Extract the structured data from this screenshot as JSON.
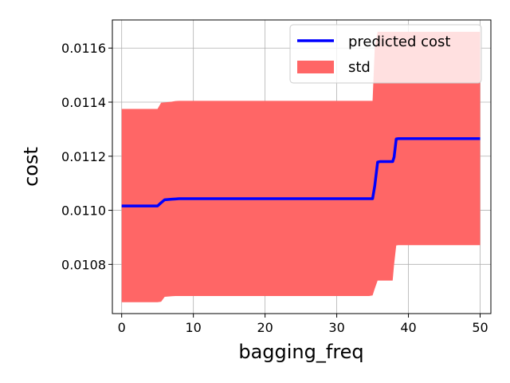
{
  "chart_data": {
    "type": "line",
    "xlabel": "bagging_freq",
    "ylabel": "cost",
    "xlim": [
      -1.3,
      51.5
    ],
    "ylim": [
      0.010618,
      0.011704
    ],
    "xticks": [
      0,
      10,
      20,
      30,
      40,
      50
    ],
    "xtick_labels": [
      "0",
      "10",
      "20",
      "30",
      "40",
      "50"
    ],
    "yticks": [
      0.0108,
      0.011,
      0.0112,
      0.0114,
      0.0116
    ],
    "ytick_labels": [
      "0.0108",
      "0.0110",
      "0.0112",
      "0.0114",
      "0.0116"
    ],
    "grid": true,
    "legend_position": "top-right",
    "series": [
      {
        "name": "predicted cost",
        "color": "#0000ff",
        "x": [
          0,
          5,
          5.5,
          6,
          7,
          7.5,
          8,
          10,
          20,
          30,
          34.5,
          35,
          35.3,
          35.7,
          36,
          37,
          37.8,
          38,
          38.3,
          38.6,
          40,
          50
        ],
        "y": [
          0.011016,
          0.011016,
          0.011028,
          0.011039,
          0.011041,
          0.011042,
          0.011043,
          0.011043,
          0.011043,
          0.011043,
          0.011043,
          0.011043,
          0.01109,
          0.011178,
          0.01118,
          0.01118,
          0.01118,
          0.011197,
          0.011264,
          0.011265,
          0.011265,
          0.011265
        ]
      },
      {
        "name": "std",
        "type": "area",
        "color": "#ff6666",
        "x": [
          0,
          5,
          5.5,
          6,
          7,
          7.5,
          8,
          10,
          20,
          30,
          34.5,
          35,
          35.3,
          35.7,
          36,
          37,
          37.8,
          38,
          38.3,
          38.6,
          40,
          50
        ],
        "upper": [
          0.011375,
          0.011375,
          0.011398,
          0.011399,
          0.011402,
          0.011404,
          0.011405,
          0.011405,
          0.011405,
          0.011405,
          0.011405,
          0.011405,
          0.0116,
          0.01166,
          0.01166,
          0.01166,
          0.01166,
          0.01166,
          0.01166,
          0.01166,
          0.01166,
          0.01166
        ],
        "lower": [
          0.01066,
          0.01066,
          0.010662,
          0.01068,
          0.010682,
          0.010683,
          0.010683,
          0.010683,
          0.010683,
          0.010683,
          0.010683,
          0.010685,
          0.01071,
          0.01074,
          0.01074,
          0.01074,
          0.01074,
          0.0108,
          0.01087,
          0.010871,
          0.010871,
          0.010871
        ]
      }
    ]
  }
}
